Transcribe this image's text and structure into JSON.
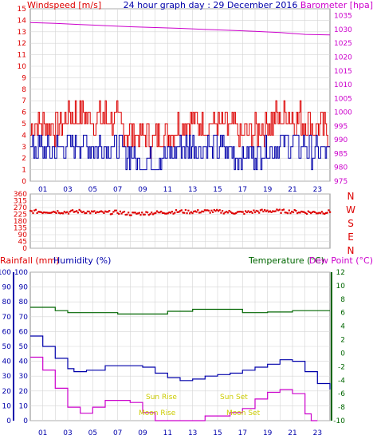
{
  "header": {
    "title": "24 hour graph day : 29 December 2016",
    "left_label": "Windspeed [m/s]",
    "right_label": "Barometer [hpa]"
  },
  "colors": {
    "wind": "#dd0000",
    "wind_avg": "#0000aa",
    "baro": "#cc00cc",
    "dir": "#dd0000",
    "hum": "#0000aa",
    "rain": "#cc00cc",
    "temp": "#006600",
    "dew": "#cc00cc",
    "sun": "#cccc00",
    "grid": "#d4d4d4"
  },
  "hour_labels": [
    "01",
    "03",
    "05",
    "07",
    "09",
    "11",
    "13",
    "15",
    "17",
    "19",
    "21",
    "23"
  ],
  "compass_labels": [
    "N",
    "W",
    "S",
    "E",
    "N"
  ],
  "bottom": {
    "rain_label": "Rainfall (mm)",
    "hum_label": "Humidity (%)",
    "temp_label": "Temperature (°C)",
    "dew_label": "Dew Point (°C)",
    "sunrise_label": "Sun Rise",
    "sunset_label": "Sun Set",
    "moonrise_label": "Moon Rise",
    "moonset_label": "Moon Set"
  },
  "chart_data": [
    {
      "type": "line",
      "title": "24 hour graph day : 29 December 2016",
      "x_hours": [
        0,
        24
      ],
      "left_axis": {
        "label": "Windspeed [m/s]",
        "range": [
          0,
          15
        ],
        "ticks": [
          0,
          1,
          2,
          3,
          4,
          5,
          6,
          7,
          8,
          9,
          10,
          11,
          12,
          13,
          14,
          15
        ]
      },
      "right_axis": {
        "label": "Barometer [hpa]",
        "range": [
          975,
          1037.5
        ],
        "ticks": [
          975,
          980,
          985,
          990,
          995,
          1000,
          1005,
          1010,
          1015,
          1020,
          1025,
          1030,
          1035
        ]
      },
      "series": [
        {
          "name": "Barometer [hpa]",
          "axis": "right",
          "x": [
            0,
            2,
            4,
            6,
            8,
            10,
            12,
            14,
            16,
            18,
            20,
            22,
            24
          ],
          "y": [
            1032.5,
            1032.2,
            1031.8,
            1031.4,
            1031.0,
            1030.7,
            1030.4,
            1030.0,
            1029.7,
            1029.3,
            1028.9,
            1028.2,
            1028.0
          ]
        },
        {
          "axis": "left",
          "line_color": "wind",
          "note_free": true,
          "x": [
            0,
            1,
            2,
            3,
            4,
            5,
            6,
            7,
            8,
            9,
            10,
            11,
            12,
            13,
            14,
            15,
            16,
            17,
            18,
            19,
            20,
            21,
            22,
            23,
            24
          ],
          "y": [
            4.5,
            5.0,
            4.6,
            5.6,
            6.0,
            5.5,
            5.6,
            5.2,
            4.0,
            3.8,
            3.6,
            4.1,
            4.9,
            5.3,
            4.8,
            5.0,
            4.6,
            3.9,
            4.2,
            5.0,
            5.6,
            5.8,
            5.1,
            4.6,
            4.2
          ]
        },
        {
          "axis": "left",
          "line_color": "wind_avg",
          "x": [
            0,
            1,
            2,
            3,
            4,
            5,
            6,
            7,
            8,
            9,
            10,
            11,
            12,
            13,
            14,
            15,
            16,
            17,
            18,
            19,
            20,
            21,
            22,
            23,
            24
          ],
          "y": [
            2.8,
            3.0,
            2.7,
            3.2,
            3.4,
            3.1,
            3.2,
            2.9,
            2.2,
            1.9,
            1.8,
            2.3,
            2.9,
            3.1,
            2.8,
            2.9,
            2.6,
            2.1,
            2.4,
            2.9,
            3.3,
            3.4,
            2.9,
            2.5,
            2.3
          ]
        }
      ]
    },
    {
      "type": "scatter",
      "x_hours": [
        0,
        24
      ],
      "y_axis": {
        "range": [
          0,
          360
        ],
        "ticks": [
          0,
          45,
          90,
          135,
          180,
          225,
          270,
          315,
          360
        ]
      },
      "series": [
        {
          "x": [
            0,
            1,
            2,
            3,
            4,
            5,
            6,
            7,
            8,
            9,
            10,
            11,
            12,
            13,
            14,
            15,
            16,
            17,
            18,
            19,
            20,
            21,
            22,
            23,
            24
          ],
          "y": [
            245,
            242,
            244,
            240,
            246,
            238,
            236,
            240,
            228,
            232,
            236,
            240,
            244,
            242,
            246,
            244,
            240,
            236,
            244,
            248,
            246,
            244,
            240,
            238,
            242
          ]
        }
      ]
    },
    {
      "type": "line",
      "x_hours": [
        0,
        24
      ],
      "left_axis": {
        "label": "Rainfall (mm) / Humidity (%)",
        "range": [
          0,
          100
        ],
        "ticks": [
          0,
          10,
          20,
          30,
          40,
          50,
          60,
          70,
          80,
          90,
          100
        ]
      },
      "right_axis": {
        "label": "Temperature (°C)",
        "range": [
          -10,
          12
        ],
        "ticks": [
          -10,
          -8,
          -6,
          -4,
          -2,
          0,
          2,
          4,
          6,
          8,
          10,
          12
        ]
      },
      "series": [
        {
          "name": "Humidity (%)",
          "axis": "left",
          "x": [
            0,
            1,
            2,
            3,
            3.5,
            4.5,
            6,
            8,
            9,
            10,
            11,
            12,
            13,
            14,
            15,
            16,
            17,
            18,
            19,
            20,
            21,
            22,
            23,
            24
          ],
          "y": [
            57,
            50,
            42,
            35,
            33,
            34,
            37,
            37,
            36,
            32,
            29,
            27,
            28,
            30,
            31,
            32,
            34,
            36,
            38,
            41,
            40,
            33,
            25,
            21
          ]
        },
        {
          "name": "Temperature (°C)",
          "axis": "right",
          "x": [
            0,
            2,
            3,
            5,
            7,
            9,
            11,
            13,
            15,
            17,
            19,
            21,
            24
          ],
          "y": [
            6.8,
            6.3,
            6.0,
            6.0,
            5.8,
            5.8,
            6.2,
            6.5,
            6.5,
            6.0,
            6.1,
            6.3,
            6.3
          ]
        },
        {
          "name": "Dew Point (°C)",
          "axis": "right",
          "x": [
            0,
            1,
            2,
            3,
            4,
            5,
            6,
            7,
            8,
            9,
            10,
            11,
            12,
            13,
            14,
            15,
            16,
            17,
            18,
            19,
            20,
            21,
            22,
            22.5,
            23
          ],
          "y": [
            -0.6,
            -2.5,
            -5.2,
            -8.0,
            -8.9,
            -8.0,
            -7.0,
            -7.0,
            -7.3,
            -8.8,
            -10,
            -10,
            -10,
            -10,
            -9.3,
            -9.3,
            -8.8,
            -8.2,
            -6.8,
            -5.8,
            -5.4,
            -6.0,
            -9.0,
            -10,
            -10
          ]
        }
      ],
      "annotations": [
        "Sun Rise",
        "Sun Set",
        "Moon Rise",
        "Moon Set"
      ]
    }
  ]
}
